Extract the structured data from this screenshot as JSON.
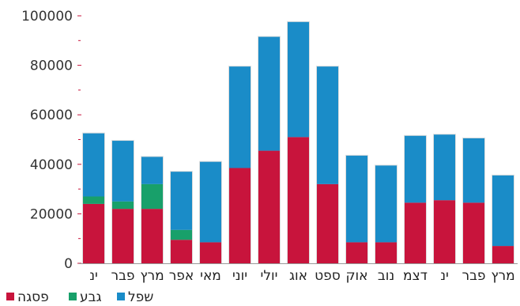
{
  "chart_data": {
    "type": "bar",
    "stacked": true,
    "categories": [
      "ינ",
      "פבר",
      "מרץ",
      "אפר",
      "מאי",
      "יוני",
      "יולי",
      "אוג",
      "ספט",
      "אוק",
      "נוב",
      "דצמ",
      "ינ",
      "פבר",
      "מרץ"
    ],
    "series": [
      {
        "name": "פסגה",
        "color": "#c8143c",
        "values": [
          24000,
          22000,
          22000,
          9500,
          8500,
          38500,
          45500,
          51000,
          32000,
          8500,
          8500,
          24500,
          25500,
          24500,
          7000
        ]
      },
      {
        "name": "גבע",
        "color": "#18a06a",
        "values": [
          3000,
          3000,
          10000,
          4000,
          0,
          0,
          0,
          0,
          0,
          0,
          0,
          0,
          0,
          0,
          0
        ]
      },
      {
        "name": "שפל",
        "color": "#1a8cc8",
        "values": [
          25500,
          24500,
          11000,
          23500,
          32500,
          41000,
          46000,
          46500,
          47500,
          35000,
          31000,
          27000,
          26500,
          26000,
          28500
        ]
      }
    ],
    "ylim": [
      0,
      100000
    ],
    "yticks": [
      0,
      20000,
      40000,
      60000,
      80000,
      100000
    ],
    "title": "",
    "xlabel": "",
    "ylabel": "",
    "legend": "bottom-left",
    "grid": false
  }
}
